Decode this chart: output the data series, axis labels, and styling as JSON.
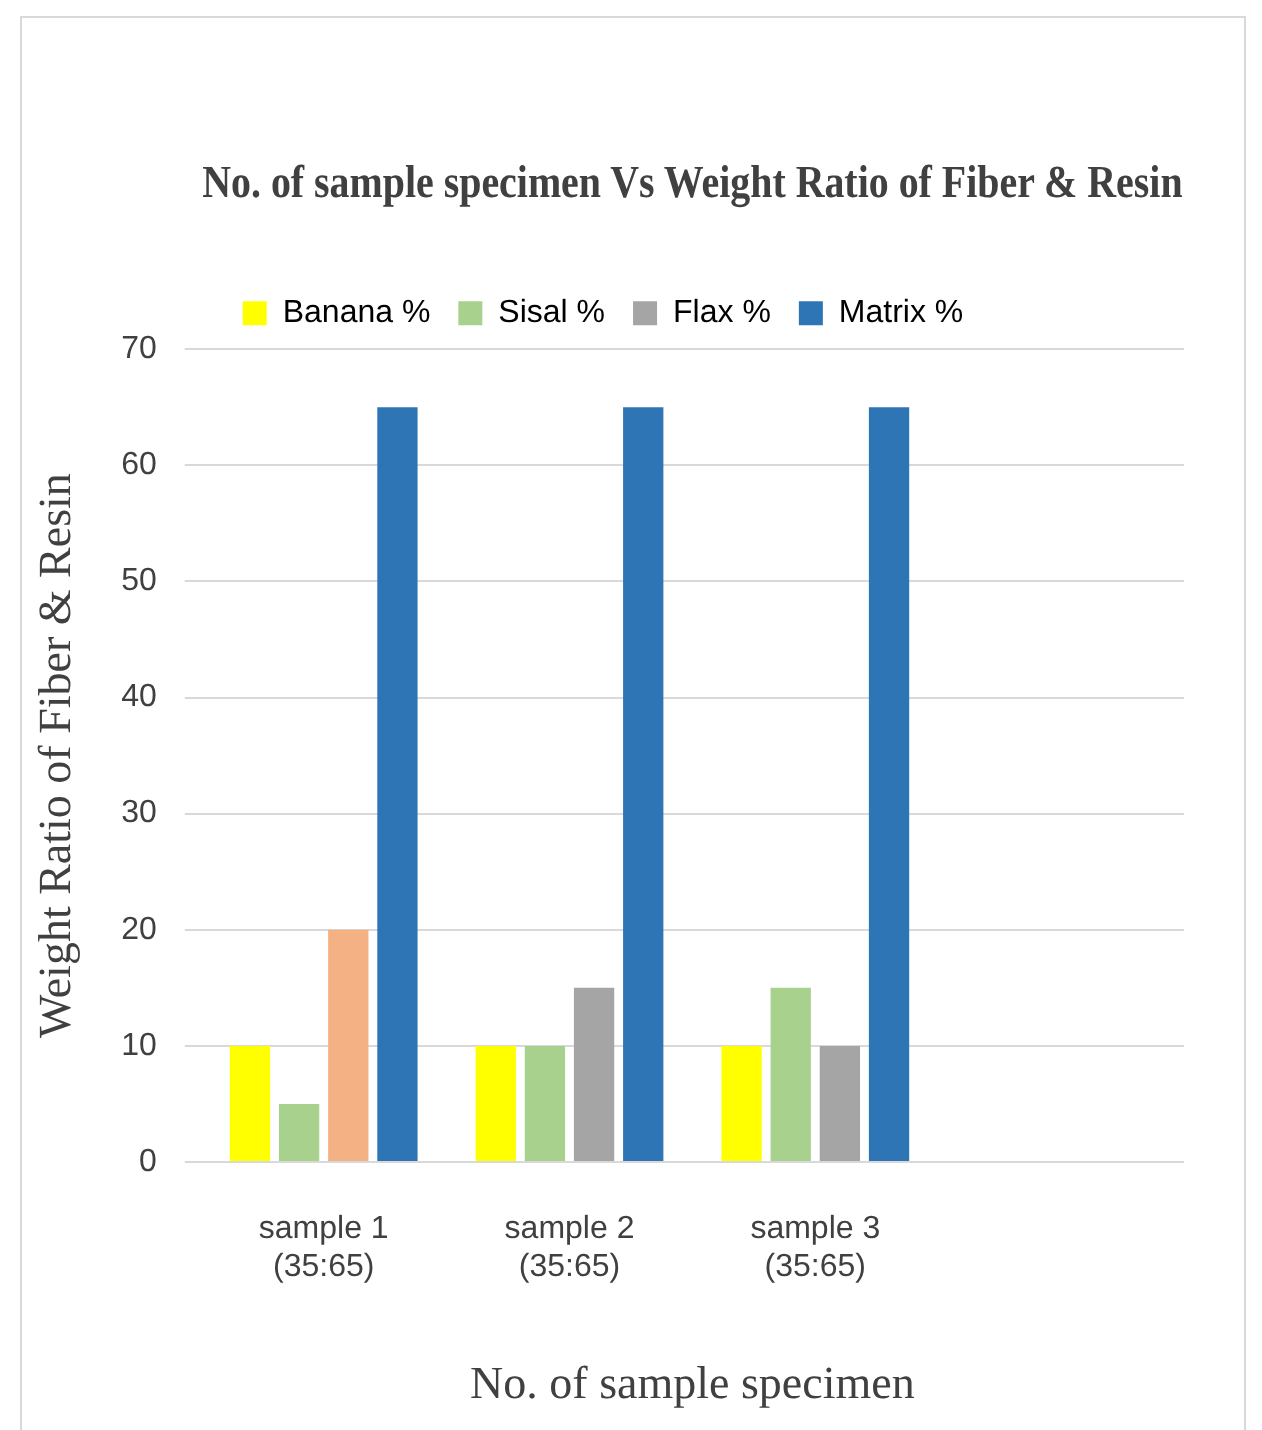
{
  "chart_data": {
    "type": "bar",
    "title": "No. of sample specimen Vs Weight Ratio of Fiber & Resin",
    "xlabel": "No. of sample specimen",
    "ylabel": "Weight Ratio of Fiber & Resin",
    "categories": [
      "sample 1\n(35:65)",
      "sample 2\n(35:65)",
      "sample 3\n(35:65)",
      null
    ],
    "series": [
      {
        "name": "Banana %",
        "color": "#ffff00",
        "values": [
          10,
          10,
          10,
          null
        ]
      },
      {
        "name": "Sisal %",
        "color": "#a9d18e",
        "values": [
          5,
          10,
          15,
          null
        ]
      },
      {
        "name": "Flax %",
        "color": "#a5a5a5",
        "colors": [
          "#f4b183",
          "#a5a5a5",
          "#a5a5a5",
          "#a5a5a5"
        ],
        "values": [
          20,
          15,
          10,
          null
        ]
      },
      {
        "name": "Matrix %",
        "color": "#2e75b6",
        "values": [
          65,
          65,
          65,
          null
        ]
      }
    ],
    "ylim": [
      0,
      70
    ],
    "yticks": [
      0,
      10,
      20,
      30,
      40,
      50,
      60,
      70
    ],
    "grid": "y",
    "legend": "top"
  }
}
